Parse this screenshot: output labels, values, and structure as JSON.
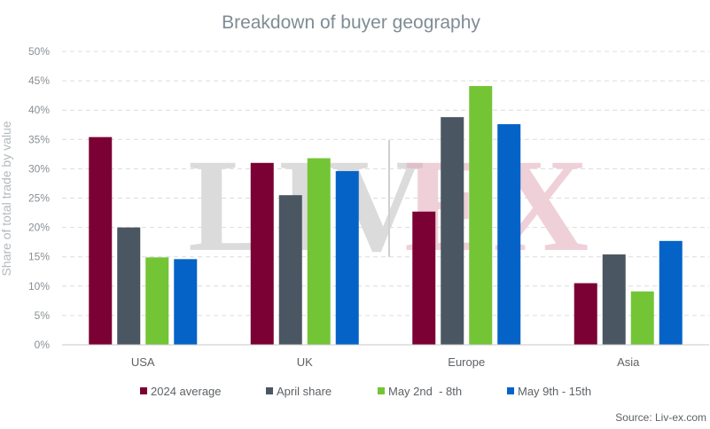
{
  "chart_data": {
    "type": "bar",
    "title": "Breakdown of buyer geography",
    "ylabel": "Share of total trade by value",
    "xlabel": "",
    "ylim": [
      0,
      50
    ],
    "yticks": [
      "0%",
      "5%",
      "10%",
      "15%",
      "20%",
      "25%",
      "30%",
      "35%",
      "40%",
      "45%",
      "50%"
    ],
    "categories": [
      "USA",
      "UK",
      "Europe",
      "Asia"
    ],
    "series": [
      {
        "name": "2024 average",
        "color": "#7b0033",
        "values": [
          35.4,
          31.0,
          22.7,
          10.5
        ]
      },
      {
        "name": "April share",
        "color": "#4a5763",
        "values": [
          20.0,
          25.5,
          38.8,
          15.4
        ]
      },
      {
        "name": "May 2nd  - 8th",
        "color": "#74c536",
        "values": [
          14.9,
          31.8,
          44.1,
          9.1
        ]
      },
      {
        "name": "May 9th - 15th",
        "color": "#0563c8",
        "values": [
          14.6,
          29.6,
          37.6,
          17.7
        ]
      }
    ],
    "grid": true,
    "legend_position": "bottom"
  },
  "watermark": {
    "part1": "LIV",
    "part2": "EX"
  },
  "source": "Source: Liv-ex.com"
}
